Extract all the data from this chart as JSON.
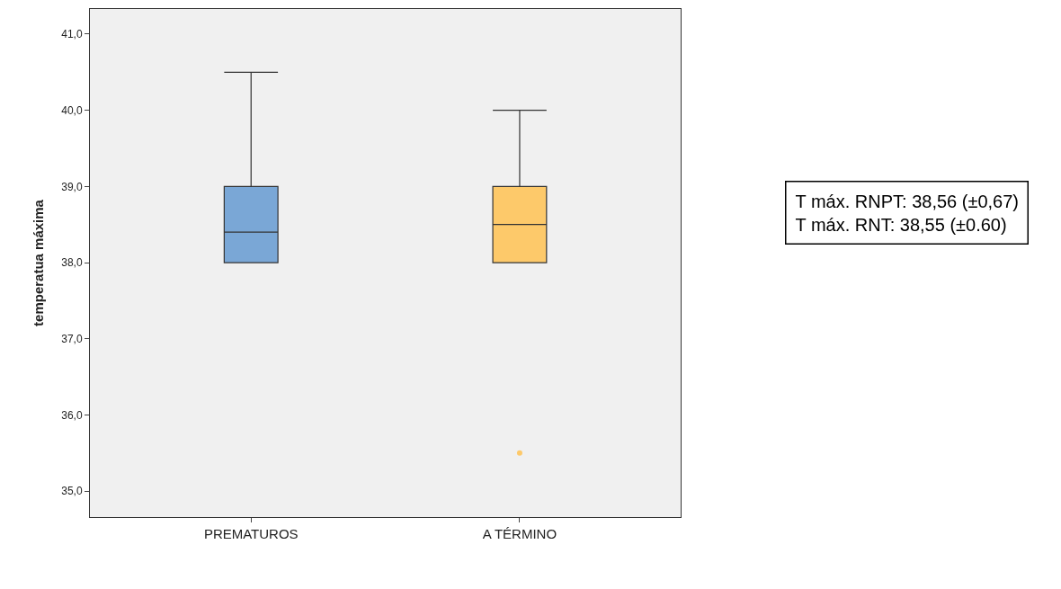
{
  "chart_data": {
    "type": "box",
    "categories": [
      "PREMATUROS",
      "A TÉRMINO"
    ],
    "ylabel": "temperatua máxima",
    "series": [
      {
        "color": "#7aa7d6",
        "boxes": [
          {
            "low": 38.0,
            "q1": 38.0,
            "median": 38.4,
            "q3": 39.0,
            "high": 40.5
          },
          null
        ]
      },
      {
        "color": "#fdc96a",
        "boxes": [
          null,
          {
            "low": 38.0,
            "q1": 38.0,
            "median": 38.5,
            "q3": 39.0,
            "high": 40.0,
            "outliers": [
              35.5
            ]
          }
        ]
      }
    ],
    "ylim": [
      34.66,
      41.33
    ],
    "yticks": [
      {
        "value": 35,
        "label": "35,0"
      },
      {
        "value": 36,
        "label": "36,0"
      },
      {
        "value": 37,
        "label": "37,0"
      },
      {
        "value": 38,
        "label": "38,0"
      },
      {
        "value": 39,
        "label": "39,0"
      },
      {
        "value": 40,
        "label": "40,0"
      },
      {
        "value": 41,
        "label": "41,0"
      }
    ],
    "grid": false,
    "annotations": [
      "T máx. RNPT: 38,56 (±0,67)",
      "T máx. RNT: 38,55 (±0.60)"
    ]
  }
}
